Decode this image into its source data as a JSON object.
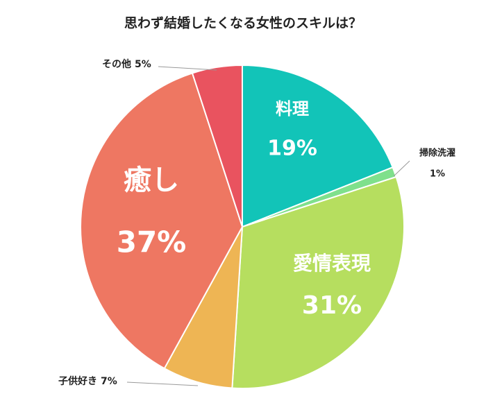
{
  "chart_data": {
    "type": "pie",
    "title": "思わず結婚したくなる女性のスキルは？",
    "categories": [
      "料理",
      "掃除洗濯",
      "愛情表現",
      "子供好き",
      "癒し",
      "その他"
    ],
    "values": [
      19,
      1,
      31,
      7,
      37,
      5
    ],
    "value_labels": [
      "19%",
      "1%",
      "31%",
      "7%",
      "37%",
      "5%"
    ],
    "colors": [
      "#12c4b8",
      "#7fe08c",
      "#b6de5f",
      "#eeb554",
      "#ee7762",
      "#e9535f"
    ]
  }
}
